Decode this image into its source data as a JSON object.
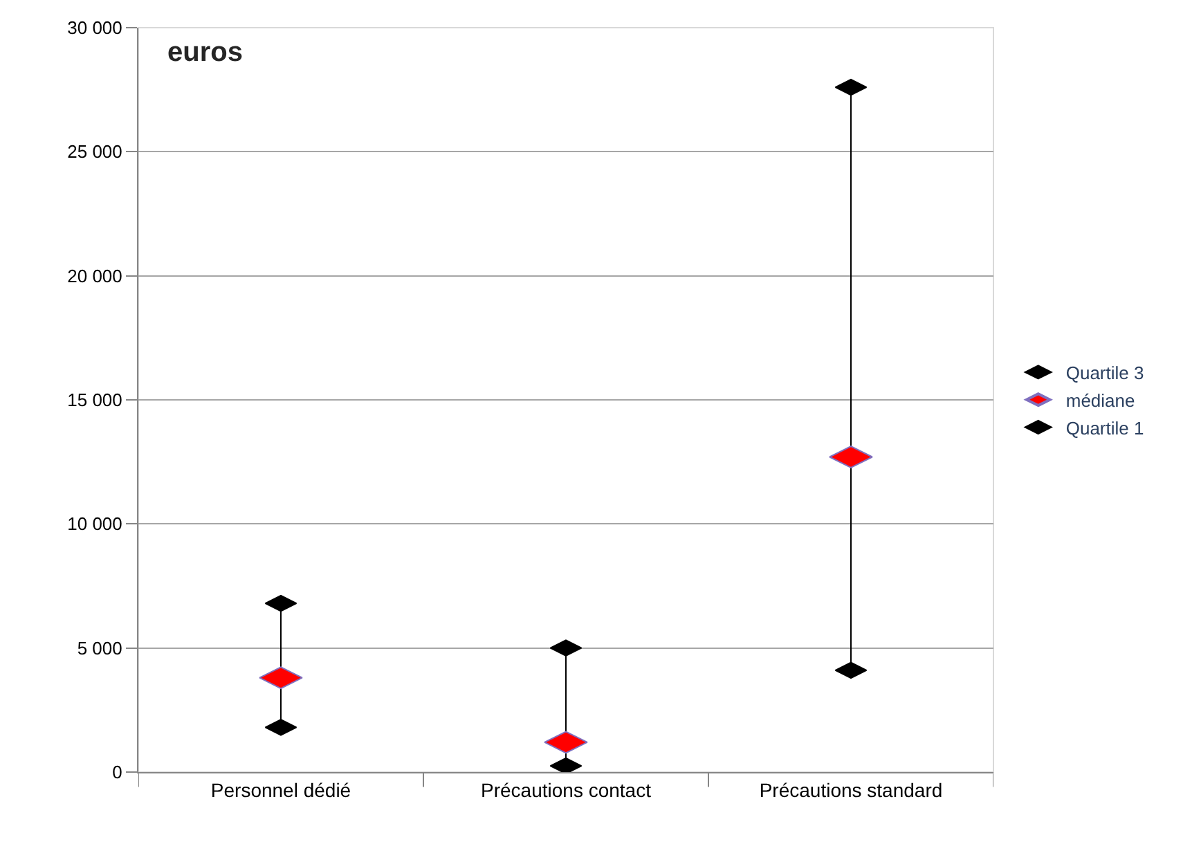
{
  "chart_data": {
    "type": "scatter",
    "ylabel": "euros",
    "categories": [
      "Personnel dédié",
      "Précautions contact",
      "Précautions standard"
    ],
    "series": [
      {
        "name": "Quartile 3",
        "color": "#000000",
        "values": [
          6800,
          5000,
          27600
        ]
      },
      {
        "name": "médiane",
        "color": "#ff0000",
        "values": [
          3800,
          1200,
          12700
        ]
      },
      {
        "name": "Quartile 1",
        "color": "#000000",
        "values": [
          1800,
          250,
          4100
        ]
      }
    ],
    "ylim": [
      0,
      30000
    ],
    "yticks": [
      {
        "value": 0,
        "label": "0"
      },
      {
        "value": 5000,
        "label": "5 000"
      },
      {
        "value": 10000,
        "label": "10 000"
      },
      {
        "value": 15000,
        "label": "15 000"
      },
      {
        "value": 20000,
        "label": "20 000"
      },
      {
        "value": 25000,
        "label": "25 000"
      },
      {
        "value": 30000,
        "label": "30 000"
      }
    ],
    "grid": "y",
    "legend": "right"
  }
}
